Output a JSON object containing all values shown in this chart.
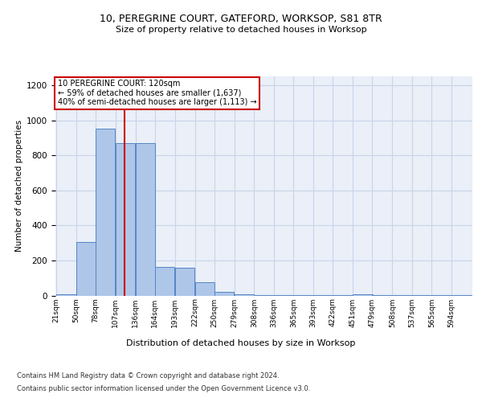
{
  "title1": "10, PEREGRINE COURT, GATEFORD, WORKSOP, S81 8TR",
  "title2": "Size of property relative to detached houses in Worksop",
  "xlabel": "Distribution of detached houses by size in Worksop",
  "ylabel": "Number of detached properties",
  "footer1": "Contains HM Land Registry data © Crown copyright and database right 2024.",
  "footer2": "Contains public sector information licensed under the Open Government Licence v3.0.",
  "annotation_line1": "10 PEREGRINE COURT: 120sqm",
  "annotation_line2": "← 59% of detached houses are smaller (1,637)",
  "annotation_line3": "40% of semi-detached houses are larger (1,113) →",
  "bar_color": "#aec6e8",
  "bar_edge_color": "#5585c5",
  "grid_color": "#c8d4e8",
  "background_color": "#eaeff8",
  "red_line_color": "#cc0000",
  "annotation_box_color": "#cc0000",
  "bins": [
    21,
    50,
    78,
    107,
    136,
    164,
    193,
    222,
    250,
    279,
    308,
    336,
    365,
    393,
    422,
    451,
    479,
    508,
    537,
    565,
    594
  ],
  "values": [
    5,
    305,
    950,
    870,
    870,
    165,
    160,
    75,
    20,
    5,
    2,
    2,
    2,
    2,
    2,
    5,
    2,
    2,
    2,
    2,
    2
  ],
  "property_size": 120,
  "ylim": [
    0,
    1250
  ],
  "yticks": [
    0,
    200,
    400,
    600,
    800,
    1000,
    1200
  ]
}
